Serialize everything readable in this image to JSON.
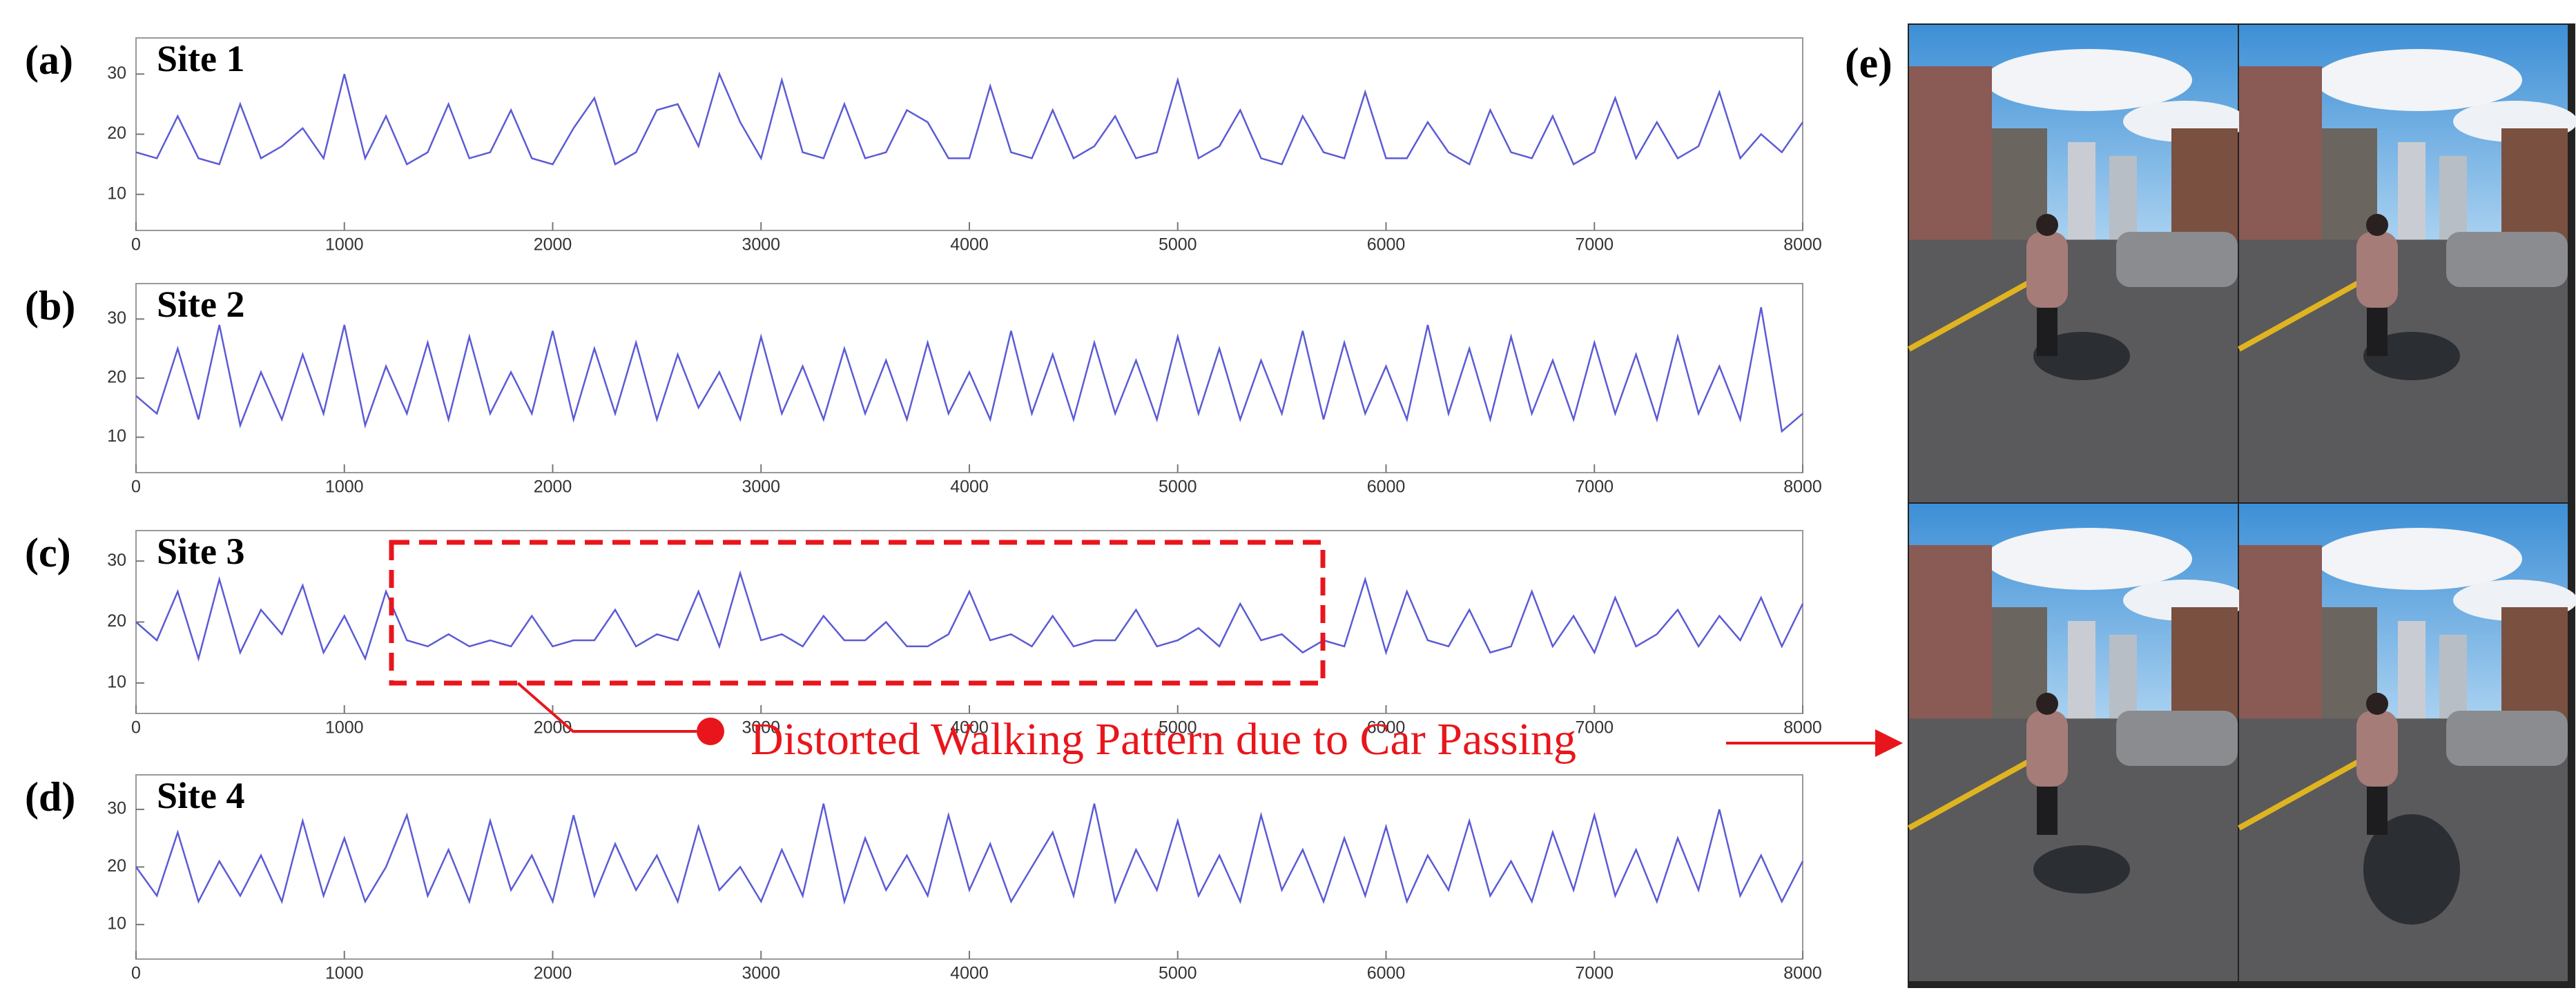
{
  "chart_data": [
    {
      "type": "line",
      "panel_label": "(a)",
      "title": "Site 1",
      "color": "#5b5bd6",
      "x": [
        0,
        100,
        200,
        300,
        400,
        500,
        600,
        700,
        800,
        900,
        1000,
        1100,
        1200,
        1300,
        1400,
        1500,
        1600,
        1700,
        1800,
        1900,
        2000,
        2100,
        2200,
        2300,
        2400,
        2500,
        2600,
        2700,
        2800,
        2900,
        3000,
        3100,
        3200,
        3300,
        3400,
        3500,
        3600,
        3700,
        3800,
        3900,
        4000,
        4100,
        4200,
        4300,
        4400,
        4500,
        4600,
        4700,
        4800,
        4900,
        5000,
        5100,
        5200,
        5300,
        5400,
        5500,
        5600,
        5700,
        5800,
        5900,
        6000,
        6100,
        6200,
        6300,
        6400,
        6500,
        6600,
        6700,
        6800,
        6900,
        7000,
        7100,
        7200,
        7300,
        7400,
        7500,
        7600,
        7700,
        7800,
        7900,
        8000
      ],
      "values": [
        17,
        16,
        23,
        16,
        15,
        25,
        16,
        18,
        21,
        16,
        30,
        16,
        23,
        15,
        17,
        25,
        16,
        17,
        24,
        16,
        15,
        21,
        26,
        15,
        17,
        24,
        25,
        18,
        30,
        22,
        16,
        29,
        17,
        16,
        25,
        16,
        17,
        24,
        22,
        16,
        16,
        28,
        17,
        16,
        24,
        16,
        18,
        23,
        16,
        17,
        29,
        16,
        18,
        24,
        16,
        15,
        23,
        17,
        16,
        27,
        16,
        16,
        22,
        17,
        15,
        24,
        17,
        16,
        23,
        15,
        17,
        26,
        16,
        22,
        16,
        18,
        27,
        16,
        20,
        17,
        22
      ],
      "xlim": [
        0,
        8000
      ],
      "xticks": [
        0,
        1000,
        2000,
        3000,
        4000,
        5000,
        6000,
        7000,
        8000
      ],
      "ylim": [
        4,
        36
      ],
      "yticks": [
        10,
        20,
        30
      ]
    },
    {
      "type": "line",
      "panel_label": "(b)",
      "title": "Site 2",
      "color": "#5b5bd6",
      "x": [
        0,
        100,
        200,
        300,
        400,
        500,
        600,
        700,
        800,
        900,
        1000,
        1100,
        1200,
        1300,
        1400,
        1500,
        1600,
        1700,
        1800,
        1900,
        2000,
        2100,
        2200,
        2300,
        2400,
        2500,
        2600,
        2700,
        2800,
        2900,
        3000,
        3100,
        3200,
        3300,
        3400,
        3500,
        3600,
        3700,
        3800,
        3900,
        4000,
        4100,
        4200,
        4300,
        4400,
        4500,
        4600,
        4700,
        4800,
        4900,
        5000,
        5100,
        5200,
        5300,
        5400,
        5500,
        5600,
        5700,
        5800,
        5900,
        6000,
        6100,
        6200,
        6300,
        6400,
        6500,
        6600,
        6700,
        6800,
        6900,
        7000,
        7100,
        7200,
        7300,
        7400,
        7500,
        7600,
        7700,
        7800,
        7900,
        8000
      ],
      "values": [
        17,
        14,
        25,
        13,
        29,
        12,
        21,
        13,
        24,
        14,
        29,
        12,
        22,
        14,
        26,
        13,
        27,
        14,
        21,
        14,
        28,
        13,
        25,
        14,
        26,
        13,
        24,
        15,
        21,
        13,
        27,
        14,
        22,
        13,
        25,
        14,
        23,
        13,
        26,
        14,
        21,
        13,
        28,
        14,
        24,
        13,
        26,
        14,
        23,
        13,
        27,
        14,
        25,
        13,
        23,
        14,
        28,
        13,
        26,
        14,
        22,
        13,
        29,
        14,
        25,
        13,
        27,
        14,
        23,
        13,
        26,
        14,
        24,
        13,
        27,
        14,
        22,
        13,
        32,
        11,
        14
      ],
      "xlim": [
        0,
        8000
      ],
      "xticks": [
        0,
        1000,
        2000,
        3000,
        4000,
        5000,
        6000,
        7000,
        8000
      ],
      "ylim": [
        4,
        36
      ],
      "yticks": [
        10,
        20,
        30
      ]
    },
    {
      "type": "line",
      "panel_label": "(c)",
      "title": "Site 3",
      "color": "#5b5bd6",
      "annotation": "Distorted Walking Pattern due to Car Passing",
      "x": [
        0,
        100,
        200,
        300,
        400,
        500,
        600,
        700,
        800,
        900,
        1000,
        1100,
        1200,
        1300,
        1400,
        1500,
        1600,
        1700,
        1800,
        1900,
        2000,
        2100,
        2200,
        2300,
        2400,
        2500,
        2600,
        2700,
        2800,
        2900,
        3000,
        3100,
        3200,
        3300,
        3400,
        3500,
        3600,
        3700,
        3800,
        3900,
        4000,
        4100,
        4200,
        4300,
        4400,
        4500,
        4600,
        4700,
        4800,
        4900,
        5000,
        5100,
        5200,
        5300,
        5400,
        5500,
        5600,
        5700,
        5800,
        5900,
        6000,
        6100,
        6200,
        6300,
        6400,
        6500,
        6600,
        6700,
        6800,
        6900,
        7000,
        7100,
        7200,
        7300,
        7400,
        7500,
        7600,
        7700,
        7800,
        7900,
        8000
      ],
      "values": [
        20,
        17,
        25,
        14,
        27,
        15,
        22,
        18,
        26,
        15,
        21,
        14,
        25,
        17,
        16,
        18,
        16,
        17,
        16,
        21,
        16,
        17,
        17,
        22,
        16,
        18,
        17,
        25,
        16,
        28,
        17,
        18,
        16,
        21,
        17,
        17,
        20,
        16,
        16,
        18,
        25,
        17,
        18,
        16,
        21,
        16,
        17,
        17,
        22,
        16,
        17,
        19,
        16,
        23,
        17,
        18,
        15,
        17,
        16,
        27,
        15,
        25,
        17,
        16,
        22,
        15,
        16,
        25,
        16,
        21,
        15,
        24,
        16,
        18,
        22,
        16,
        21,
        17,
        24,
        16,
        23
      ],
      "xlim": [
        0,
        8000
      ],
      "xticks": [
        0,
        1000,
        2000,
        3000,
        4000,
        5000,
        6000,
        7000,
        8000
      ],
      "ylim": [
        5,
        35
      ],
      "yticks": [
        10,
        20,
        30
      ]
    },
    {
      "type": "line",
      "panel_label": "(d)",
      "title": "Site 4",
      "color": "#5b5bd6",
      "x": [
        0,
        100,
        200,
        300,
        400,
        500,
        600,
        700,
        800,
        900,
        1000,
        1100,
        1200,
        1300,
        1400,
        1500,
        1600,
        1700,
        1800,
        1900,
        2000,
        2100,
        2200,
        2300,
        2400,
        2500,
        2600,
        2700,
        2800,
        2900,
        3000,
        3100,
        3200,
        3300,
        3400,
        3500,
        3600,
        3700,
        3800,
        3900,
        4000,
        4100,
        4200,
        4300,
        4400,
        4500,
        4600,
        4700,
        4800,
        4900,
        5000,
        5100,
        5200,
        5300,
        5400,
        5500,
        5600,
        5700,
        5800,
        5900,
        6000,
        6100,
        6200,
        6300,
        6400,
        6500,
        6600,
        6700,
        6800,
        6900,
        7000,
        7100,
        7200,
        7300,
        7400,
        7500,
        7600,
        7700,
        7800,
        7900,
        8000
      ],
      "values": [
        20,
        15,
        26,
        14,
        21,
        15,
        22,
        14,
        28,
        15,
        25,
        14,
        20,
        29,
        15,
        23,
        14,
        28,
        16,
        22,
        14,
        29,
        15,
        24,
        16,
        22,
        14,
        27,
        16,
        20,
        14,
        23,
        15,
        31,
        14,
        25,
        16,
        22,
        15,
        29,
        16,
        24,
        14,
        20,
        26,
        15,
        31,
        14,
        23,
        16,
        28,
        15,
        22,
        14,
        29,
        16,
        23,
        14,
        25,
        15,
        27,
        14,
        22,
        16,
        28,
        15,
        21,
        14,
        26,
        16,
        29,
        15,
        23,
        14,
        25,
        16,
        30,
        15,
        22,
        14,
        21
      ],
      "xlim": [
        0,
        8000
      ],
      "xticks": [
        0,
        1000,
        2000,
        3000,
        4000,
        5000,
        6000,
        7000,
        8000
      ],
      "ylim": [
        4,
        36
      ],
      "yticks": [
        10,
        20,
        30
      ]
    }
  ],
  "photo_panel": {
    "label": "(e)"
  }
}
